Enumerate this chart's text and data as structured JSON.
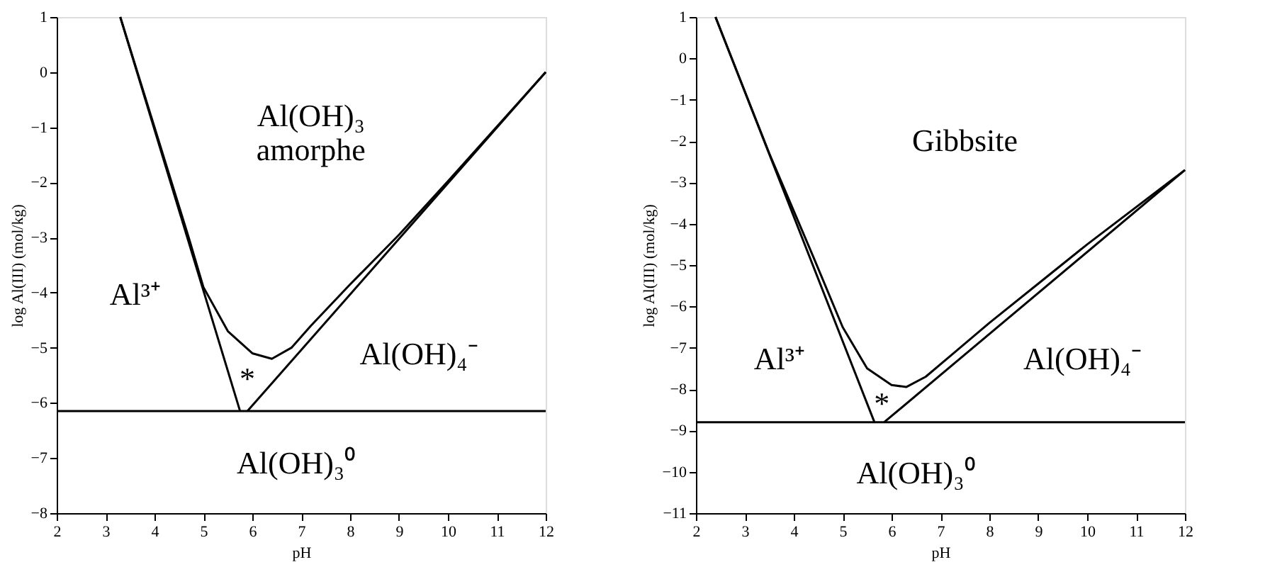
{
  "chart_data": [
    {
      "type": "line",
      "xlabel": "pH",
      "ylabel": "log Al(III) (mol/kg)",
      "xlim": [
        2,
        12
      ],
      "ylim": [
        -8,
        1
      ],
      "xticks": [
        2,
        3,
        4,
        5,
        6,
        7,
        8,
        9,
        10,
        11,
        12
      ],
      "yticks": [
        -8,
        -7,
        -6,
        -5,
        -4,
        -3,
        -2,
        -1,
        0,
        1
      ],
      "grid": false,
      "series": [
        {
          "color": "#000000",
          "x": [
            3.3,
            5.75
          ],
          "values": [
            1,
            -6.15
          ]
        },
        {
          "color": "#000000",
          "x": [
            5.9,
            12
          ],
          "values": [
            -6.15,
            0
          ]
        },
        {
          "color": "#000000",
          "x": [
            2,
            12
          ],
          "values": [
            -6.15,
            -6.15
          ]
        },
        {
          "color": "#000000",
          "x": [
            3.3,
            4.0,
            4.7,
            5.0,
            5.5,
            6.0,
            6.4,
            6.8,
            7.2,
            8.0,
            9.0,
            10.0,
            12.0
          ],
          "values": [
            1,
            -1.0,
            -3.0,
            -3.9,
            -4.7,
            -5.1,
            -5.2,
            -5.0,
            -4.6,
            -3.85,
            -2.95,
            -1.98,
            0
          ]
        }
      ],
      "annotations": [
        "Al(OH)₃\namorphe",
        "Al³⁺",
        "Al(OH)₄⁻",
        "Al(OH)₃⁰",
        "*"
      ]
    },
    {
      "type": "line",
      "xlabel": "pH",
      "ylabel": "log Al(III) (mol/kg)",
      "xlim": [
        2,
        12
      ],
      "ylim": [
        -11,
        1
      ],
      "xticks": [
        2,
        3,
        4,
        5,
        6,
        7,
        8,
        9,
        10,
        11,
        12
      ],
      "yticks": [
        -11,
        -10,
        -9,
        -8,
        -7,
        -6,
        -5,
        -4,
        -3,
        -2,
        -1,
        0,
        1
      ],
      "grid": false,
      "series": [
        {
          "color": "#000000",
          "x": [
            2.4,
            5.65
          ],
          "values": [
            1,
            -8.8
          ]
        },
        {
          "color": "#000000",
          "x": [
            5.85,
            12
          ],
          "values": [
            -8.8,
            -2.7
          ]
        },
        {
          "color": "#000000",
          "x": [
            2,
            12
          ],
          "values": [
            -8.8,
            -8.8
          ]
        },
        {
          "color": "#000000",
          "x": [
            2.4,
            3.5,
            4.4,
            5.0,
            5.5,
            6.0,
            6.3,
            6.7,
            7.2,
            8.0,
            9.0,
            10.0,
            12.0
          ],
          "values": [
            1,
            -2.3,
            -4.8,
            -6.5,
            -7.5,
            -7.9,
            -7.95,
            -7.7,
            -7.2,
            -6.4,
            -5.45,
            -4.5,
            -2.7
          ]
        }
      ],
      "annotations": [
        "Gibbsite",
        "Al³⁺",
        "Al(OH)₄⁻",
        "Al(OH)₃⁰",
        "*"
      ]
    }
  ]
}
